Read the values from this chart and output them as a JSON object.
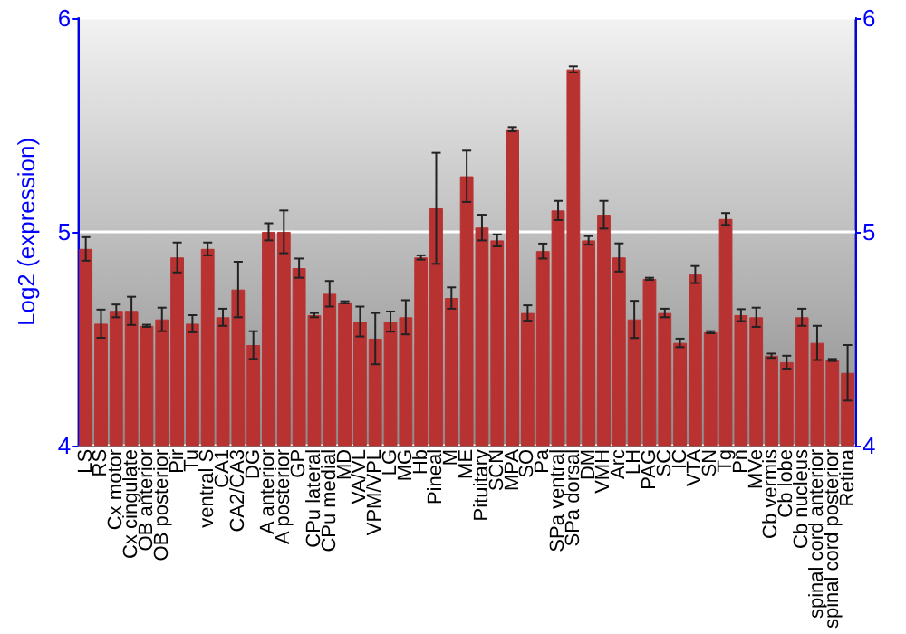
{
  "chart_data": {
    "type": "bar",
    "ylabel": "Log2 (expression)",
    "categories": [
      "LS",
      "RS",
      "Cx motor",
      "Cx cingulate",
      "OB anterior",
      "OB posterior",
      "Pir",
      "Tu",
      "ventral S",
      "CA1",
      "CA2/CA3",
      "DG",
      "A anterior",
      "A posterior",
      "GP",
      "CPu lateral",
      "CPu medial",
      "MD",
      "VA/VL",
      "VPM/VPL",
      "LG",
      "MG",
      "Hb",
      "Pineal",
      "M",
      "ME",
      "Pituitary",
      "SCN",
      "MPA",
      "SO",
      "Pa",
      "SPa ventral",
      "SPa dorsal",
      "DM",
      "VMH",
      "Arc",
      "LH",
      "PAG",
      "SC",
      "IC",
      "VTA",
      "SN",
      "Tg",
      "Pn",
      "MVe",
      "Cb vermis",
      "Cb lobe",
      "Cb nucleus",
      "spinal cord anterior",
      "spinal cord posterior",
      "Retina"
    ],
    "series": [
      {
        "color": "#b83232",
        "values": [
          4.92,
          4.57,
          4.63,
          4.63,
          4.56,
          4.59,
          4.88,
          4.57,
          4.92,
          4.6,
          4.73,
          4.47,
          5.0,
          5.0,
          4.83,
          4.61,
          4.71,
          4.67,
          4.58,
          4.5,
          4.58,
          4.6,
          4.88,
          5.11,
          4.69,
          5.26,
          5.02,
          4.96,
          5.48,
          4.62,
          4.91,
          5.1,
          5.76,
          4.96,
          5.08,
          4.88,
          4.59,
          4.78,
          4.62,
          4.48,
          4.8,
          4.53,
          5.06,
          4.61,
          4.6,
          4.42,
          4.39,
          4.6,
          4.48,
          4.4,
          4.34
        ],
        "errors": [
          0.055,
          0.066,
          0.03,
          0.066,
          0.005,
          0.055,
          0.07,
          0.04,
          0.03,
          0.04,
          0.13,
          0.065,
          0.04,
          0.1,
          0.045,
          0.01,
          0.06,
          0.005,
          0.07,
          0.12,
          0.047,
          0.08,
          0.01,
          0.26,
          0.05,
          0.12,
          0.06,
          0.028,
          0.01,
          0.036,
          0.035,
          0.045,
          0.014,
          0.02,
          0.065,
          0.066,
          0.087,
          0.005,
          0.02,
          0.02,
          0.04,
          0.005,
          0.028,
          0.028,
          0.045,
          0.01,
          0.03,
          0.04,
          0.08,
          0.005,
          0.13
        ]
      }
    ],
    "ylim": [
      4,
      6
    ],
    "yticks": [
      4,
      5,
      6
    ],
    "y2lim": [
      4,
      6
    ],
    "y2ticks": [
      4,
      5,
      6
    ],
    "grid": "y"
  }
}
